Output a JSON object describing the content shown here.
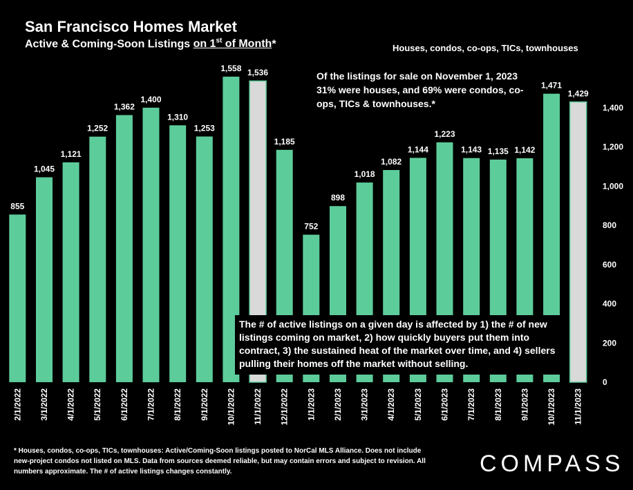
{
  "header": {
    "title": "San Francisco Homes Market",
    "subtitle_pre": "Active & Coming-Soon Listings ",
    "subtitle_underlined": "on 1",
    "subtitle_sup": "st",
    "subtitle_underlined_end": " of Month",
    "subtitle_post": "*",
    "legend_note": "Houses, condos, co-ops, TICs, townhouses"
  },
  "annotations": {
    "top_right": "Of the listings for sale on November 1, 2023 31% were houses, and 69% were condos, co-ops, TICs & townhouses.*",
    "bottom_box": "The # of active listings on a given day is affected by 1) the # of new listings coming on market, 2) how quickly buyers put them into contract, 3) the sustained heat of the market over time, and 4) sellers pulling their homes off the market without selling."
  },
  "footnote": "* Houses, condos, co-ops, TICs, townhouses: Active/Coming-Soon listings posted to NorCal MLS Alliance. Does not include new-project condos not listed on MLS. Data from sources deemed reliable, but may contain errors and subject to revision. All numbers approximate. The # of active listings changes constantly.",
  "brand": {
    "logo_text": "COMPASS"
  },
  "colors": {
    "bar": "#5dcc9b",
    "bar_highlight": "#d9d9d9",
    "background": "#000000"
  },
  "chart_data": {
    "type": "bar",
    "categories": [
      "2/1/2022",
      "3/1/2022",
      "4/1/2022",
      "5/1/2022",
      "6/1/2022",
      "7/1/2022",
      "8/1/2022",
      "9/1/2022",
      "10/1/2022",
      "11/1/2022",
      "12/1/2022",
      "1/1/2023",
      "2/1/2023",
      "3/1/2023",
      "4/1/2023",
      "5/1/2023",
      "6/1/2023",
      "7/1/2023",
      "8/1/2023",
      "9/1/2023",
      "10/1/2023",
      "11/1/2023"
    ],
    "values": [
      855,
      1045,
      1121,
      1252,
      1362,
      1400,
      1310,
      1253,
      1558,
      1536,
      1185,
      752,
      898,
      1018,
      1082,
      1144,
      1223,
      1143,
      1135,
      1142,
      1471,
      1429
    ],
    "value_labels": [
      "855",
      "1,045",
      "1,121",
      "1,252",
      "1,362",
      "1,400",
      "1,310",
      "1,253",
      "1,558",
      "1,536",
      "1,185",
      "752",
      "898",
      "1,018",
      "1,082",
      "1,144",
      "1,223",
      "1,143",
      "1,135",
      "1,142",
      "1,471",
      "1,429"
    ],
    "highlighted_categories": [
      "11/1/2022",
      "11/1/2023"
    ],
    "ylim": [
      0,
      1600
    ],
    "yticks": [
      0,
      200,
      400,
      600,
      800,
      1000,
      1200,
      1400
    ],
    "ytick_labels": [
      "0",
      "200",
      "400",
      "600",
      "800",
      "1,000",
      "1,200",
      "1,400"
    ],
    "y_axis_side": "right",
    "grid": false,
    "xlabel": "",
    "ylabel": ""
  }
}
